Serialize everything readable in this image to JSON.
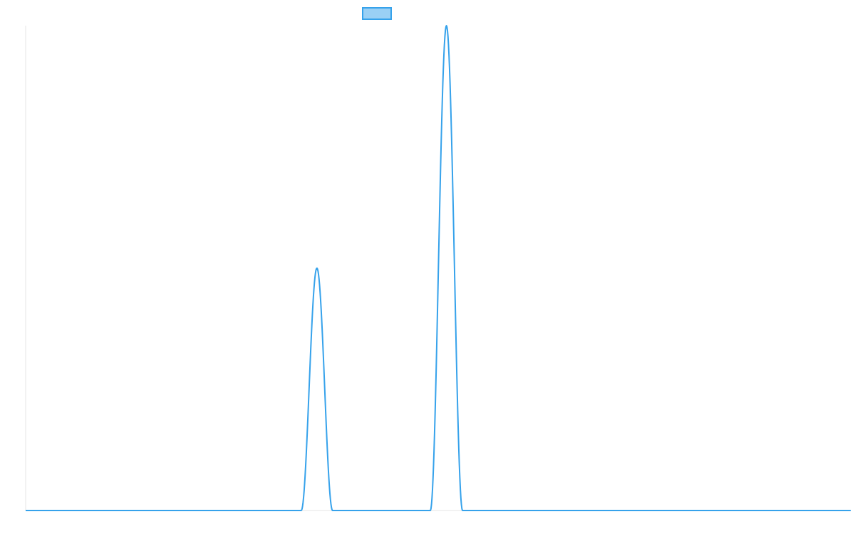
{
  "chart_data": {
    "type": "line",
    "title": "",
    "xlabel": "",
    "ylabel": "",
    "grid": false,
    "legend_position": "top",
    "series": [
      {
        "color": "#36a2eb",
        "fill": "#9ad0f5",
        "peaks": [
          {
            "center": 0.353,
            "height": 0.5,
            "base_halfwidth": 0.019
          },
          {
            "center": 0.51,
            "height": 1.0,
            "base_halfwidth": 0.0195
          }
        ]
      }
    ],
    "xlim": [
      0,
      1
    ],
    "ylim": [
      0,
      1
    ]
  }
}
